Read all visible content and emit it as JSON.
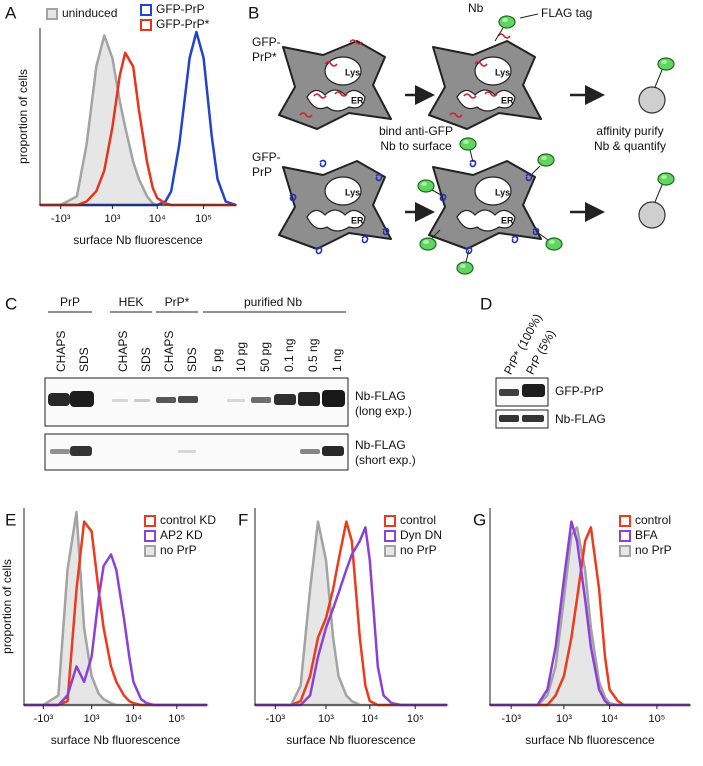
{
  "chart_data": [
    {
      "type": "line",
      "panel_label": "A",
      "x": [
        -3000,
        -1000,
        -300,
        0,
        300,
        600,
        1000,
        1500,
        2000,
        3000,
        4000,
        6000,
        8000,
        10000,
        15000,
        20000,
        30000,
        50000,
        70000,
        100000,
        150000,
        200000,
        300000,
        500000
      ],
      "xlim": [
        -3000,
        500000
      ],
      "xscale": "biexponential",
      "xticks": [
        {
          "value": -1000,
          "label": "-10³"
        },
        {
          "value": 1000,
          "label": "10³"
        },
        {
          "value": 10000,
          "label": "10⁴"
        },
        {
          "value": 100000,
          "label": "10⁵"
        }
      ],
      "ylim": [
        0,
        100
      ],
      "xlabel": "surface Nb fluorescence",
      "ylabel": "proportion of cells",
      "series": [
        {
          "name": "uninduced",
          "color": "#a3a3a3",
          "fill": "#e6e6e6",
          "values": [
            0,
            0,
            5,
            35,
            80,
            98,
            85,
            60,
            45,
            25,
            15,
            5,
            1,
            0,
            0,
            0,
            0,
            0,
            0,
            0,
            0,
            0,
            0,
            0
          ]
        },
        {
          "name": "GFP-PrP",
          "color": "#2342d0",
          "values": [
            0,
            0,
            0,
            0,
            0,
            0,
            0,
            0,
            0,
            0,
            0,
            0,
            0,
            0,
            2,
            8,
            35,
            85,
            100,
            85,
            40,
            15,
            2,
            0
          ]
        },
        {
          "name": "GFP-PrP*",
          "color": "#e8341c",
          "values": [
            0,
            0,
            0,
            2,
            8,
            20,
            45,
            75,
            88,
            80,
            55,
            25,
            10,
            4,
            1,
            0,
            0,
            0,
            0,
            0,
            0,
            0,
            0,
            0
          ]
        }
      ]
    },
    {
      "type": "line",
      "panel_label": "E",
      "x": [
        -3000,
        -1000,
        -300,
        0,
        300,
        600,
        1000,
        1500,
        2000,
        3000,
        4000,
        6000,
        8000,
        10000,
        15000,
        20000,
        30000,
        50000,
        70000,
        100000,
        150000,
        200000,
        300000,
        500000
      ],
      "xlim": [
        -3000,
        500000
      ],
      "xscale": "biexponential",
      "xticks": [
        {
          "value": -1000,
          "label": "-10³"
        },
        {
          "value": 1000,
          "label": "10³"
        },
        {
          "value": 10000,
          "label": "10⁴"
        },
        {
          "value": 100000,
          "label": "10⁵"
        }
      ],
      "ylim": [
        0,
        100
      ],
      "xlabel": "surface Nb fluorescence",
      "ylabel": "proportion of cells",
      "legend": "upper right",
      "series": [
        {
          "name": "control KD",
          "color": "#ee3a1d",
          "values": [
            0,
            0,
            0,
            2,
            60,
            95,
            90,
            60,
            40,
            20,
            12,
            5,
            2,
            1,
            0,
            0,
            0,
            0,
            0,
            0,
            0,
            0,
            0,
            0
          ]
        },
        {
          "name": "AP2 KD",
          "color": "#8b41d8",
          "values": [
            0,
            0,
            0,
            5,
            20,
            12,
            25,
            55,
            72,
            78,
            70,
            45,
            25,
            12,
            3,
            1,
            0,
            0,
            0,
            0,
            0,
            0,
            0,
            0
          ]
        },
        {
          "name": "no PrP",
          "color": "#a3a3a3",
          "fill": "#e6e6e6",
          "values": [
            0,
            0,
            5,
            70,
            100,
            40,
            15,
            6,
            3,
            1,
            0,
            0,
            0,
            0,
            0,
            0,
            0,
            0,
            0,
            0,
            0,
            0,
            0,
            0
          ]
        }
      ]
    },
    {
      "type": "line",
      "panel_label": "F",
      "x": [
        -3000,
        -1000,
        -300,
        0,
        300,
        600,
        1000,
        1500,
        2000,
        3000,
        4000,
        6000,
        8000,
        10000,
        15000,
        20000,
        30000,
        50000,
        70000,
        100000,
        150000,
        200000,
        300000,
        500000
      ],
      "xlim": [
        -3000,
        500000
      ],
      "xscale": "biexponential",
      "xticks": [
        {
          "value": -1000,
          "label": "-10³"
        },
        {
          "value": 1000,
          "label": "10³"
        },
        {
          "value": 10000,
          "label": "10⁴"
        },
        {
          "value": 100000,
          "label": "10⁵"
        }
      ],
      "ylim": [
        0,
        100
      ],
      "xlabel": "surface Nb fluorescence",
      "legend": "upper right",
      "series": [
        {
          "name": "control",
          "color": "#ee3a1d",
          "values": [
            0,
            0,
            0,
            2,
            15,
            35,
            45,
            60,
            75,
            95,
            85,
            35,
            10,
            2,
            0,
            0,
            0,
            0,
            0,
            0,
            0,
            0,
            0,
            0
          ]
        },
        {
          "name": "Dyn DN",
          "color": "#8b41d8",
          "values": [
            0,
            0,
            0,
            0,
            5,
            25,
            40,
            50,
            58,
            70,
            78,
            85,
            92,
            75,
            20,
            5,
            1,
            0,
            0,
            0,
            0,
            0,
            0,
            0
          ]
        },
        {
          "name": "no PrP",
          "color": "#a3a3a3",
          "fill": "#e6e6e6",
          "values": [
            0,
            0,
            0,
            10,
            60,
            95,
            75,
            35,
            15,
            5,
            2,
            0,
            0,
            0,
            0,
            0,
            0,
            0,
            0,
            0,
            0,
            0,
            0,
            0
          ]
        }
      ]
    },
    {
      "type": "line",
      "panel_label": "G",
      "x": [
        -3000,
        -1000,
        -300,
        0,
        300,
        600,
        1000,
        1500,
        2000,
        3000,
        4000,
        6000,
        8000,
        10000,
        15000,
        20000,
        30000,
        50000,
        70000,
        100000,
        150000,
        200000,
        300000,
        500000
      ],
      "xlim": [
        -3000,
        500000
      ],
      "xscale": "biexponential",
      "xticks": [
        {
          "value": -1000,
          "label": "-10³"
        },
        {
          "value": 1000,
          "label": "10³"
        },
        {
          "value": 10000,
          "label": "10⁴"
        },
        {
          "value": 100000,
          "label": "10⁵"
        }
      ],
      "ylim": [
        0,
        100
      ],
      "xlabel": "surface Nb fluorescence",
      "legend": "upper right",
      "series": [
        {
          "name": "control",
          "color": "#ee3a1d",
          "values": [
            0,
            0,
            0,
            0,
            0,
            5,
            15,
            35,
            55,
            85,
            92,
            60,
            25,
            8,
            2,
            0,
            0,
            0,
            0,
            0,
            0,
            0,
            0,
            0
          ]
        },
        {
          "name": "BFA",
          "color": "#8b41d8",
          "values": [
            0,
            0,
            0,
            0,
            8,
            30,
            65,
            95,
            85,
            55,
            30,
            8,
            2,
            0,
            0,
            0,
            0,
            0,
            0,
            0,
            0,
            0,
            0,
            0
          ]
        },
        {
          "name": "no PrP",
          "color": "#a3a3a3",
          "fill": "#e6e6e6",
          "values": [
            0,
            0,
            0,
            0,
            5,
            20,
            55,
            88,
            92,
            70,
            40,
            12,
            4,
            1,
            0,
            0,
            0,
            0,
            0,
            0,
            0,
            0,
            0,
            0
          ]
        }
      ]
    }
  ],
  "panel_b": {
    "label": "B",
    "top_cell": [
      "GFP-",
      "PrP*"
    ],
    "bottom_cell": [
      "GFP-",
      "PrP"
    ],
    "organelles": [
      "Lys",
      "ER"
    ],
    "nb": "Nb",
    "tag": "FLAG tag",
    "step_1": [
      "bind anti-GFP",
      "Nb to surface"
    ],
    "step_2": [
      "affinity purify",
      "Nb & quantify"
    ]
  },
  "panel_c": {
    "label": "C",
    "groups": [
      "PrP",
      "HEK",
      "PrP*",
      "purified Nb"
    ],
    "lanes": [
      "CHAPS",
      "SDS",
      "CHAPS",
      "SDS",
      "CHAPS",
      "SDS",
      "5 pg",
      "10 pg",
      "50 pg",
      "0.1 ng",
      "0.5 ng",
      "1 ng"
    ],
    "blots": [
      [
        "Nb-FLAG",
        "(long exp.)"
      ],
      [
        "Nb-FLAG",
        "(short exp.)"
      ]
    ]
  },
  "panel_d": {
    "label": "D",
    "lanes": [
      "PrP* (100%)",
      "PrP (5%)"
    ],
    "blots": [
      "GFP-PrP",
      "Nb-FLAG"
    ]
  }
}
